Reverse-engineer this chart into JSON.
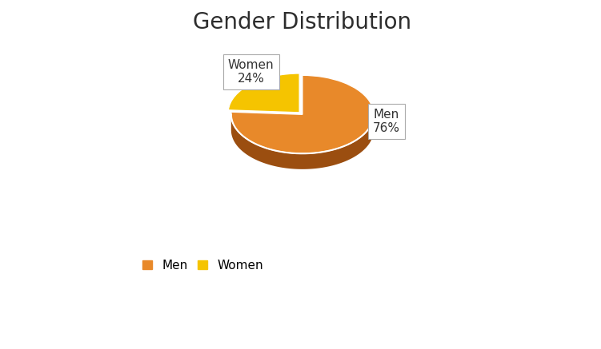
{
  "title": "Gender Distribution",
  "labels": [
    "Men",
    "Women"
  ],
  "values": [
    76,
    24
  ],
  "men_color_top": "#E8892A",
  "men_color_side": "#9B4E10",
  "women_color_top": "#F5C400",
  "women_color_side": "#9B8A00",
  "explode": [
    0,
    0.06
  ],
  "startangle": 90,
  "title_fontsize": 20,
  "label_fontsize": 11,
  "legend_fontsize": 11,
  "background_color": "#ffffff",
  "women_label": "Women\n24%",
  "men_label": "Men\n76%"
}
